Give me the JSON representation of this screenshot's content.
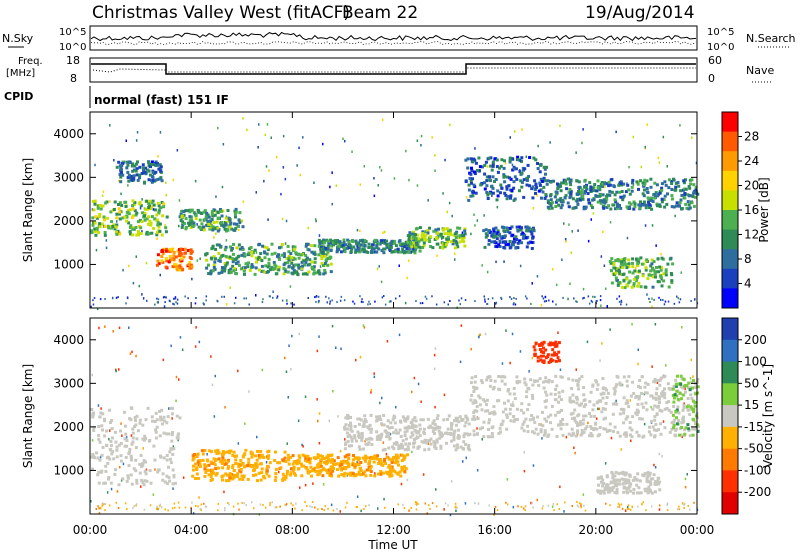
{
  "header": {
    "station": "Christmas Valley West (fitACF)",
    "beam": "Beam 22",
    "date": "19/Aug/2014"
  },
  "left_labels": {
    "nsky": "N.Sky",
    "freq_1": "Freq.",
    "freq_2": "[MHz]",
    "cpid": "CPID"
  },
  "right_labels": {
    "nsearch": "N.Search",
    "nave": "Nave"
  },
  "noise_axis": {
    "left_ticks": [
      "10^5",
      "10^0"
    ],
    "right_ticks": [
      "10^5",
      "10^0"
    ]
  },
  "freq_axis": {
    "left_ticks": [
      "18",
      "8"
    ],
    "right_ticks": [
      "60",
      "0"
    ]
  },
  "cpid_text": "normal (fast) 151 IF",
  "x_axis": {
    "label": "Time UT",
    "ticks": [
      "00:00",
      "04:00",
      "08:00",
      "12:00",
      "16:00",
      "20:00",
      "00:00"
    ]
  },
  "chart_data": [
    {
      "type": "heatmap",
      "panel": "power",
      "ylabel": "Slant Range [km]",
      "xlabel": "",
      "x_range_hours": [
        0,
        24
      ],
      "ylim": [
        0,
        4500
      ],
      "yticks": [
        "1000",
        "2000",
        "3000",
        "4000"
      ],
      "colorbar": {
        "label": "Power [dB]",
        "ticks": [
          "28",
          "24",
          "20",
          "16",
          "12",
          "8",
          "4"
        ],
        "colors": [
          "#ff0000",
          "#ff5a00",
          "#ff9a00",
          "#ffd200",
          "#c8e000",
          "#4caf50",
          "#2e8b57",
          "#2e6e9e",
          "#1a3fbf",
          "#0000ff"
        ]
      },
      "regions": [
        {
          "t0": 0.0,
          "t1": 3.0,
          "r0": 1700,
          "r1": 2500,
          "level": 15
        },
        {
          "t0": 1.0,
          "t1": 2.8,
          "r0": 2900,
          "r1": 3400,
          "level": 8
        },
        {
          "t0": 2.6,
          "t1": 4.0,
          "r0": 900,
          "r1": 1400,
          "level": 26
        },
        {
          "t0": 3.5,
          "t1": 6.0,
          "r0": 1800,
          "r1": 2300,
          "level": 12
        },
        {
          "t0": 4.5,
          "t1": 9.5,
          "r0": 800,
          "r1": 1500,
          "level": 12
        },
        {
          "t0": 9.0,
          "t1": 13.0,
          "r0": 1300,
          "r1": 1600,
          "level": 10
        },
        {
          "t0": 12.5,
          "t1": 14.8,
          "r0": 1400,
          "r1": 1900,
          "level": 14
        },
        {
          "t0": 14.8,
          "t1": 18.0,
          "r0": 2500,
          "r1": 3500,
          "level": 7
        },
        {
          "t0": 18.0,
          "t1": 24.0,
          "r0": 2300,
          "r1": 3000,
          "level": 10
        },
        {
          "t0": 20.5,
          "t1": 23.0,
          "r0": 500,
          "r1": 1200,
          "level": 14
        },
        {
          "t0": 15.5,
          "t1": 17.5,
          "r0": 1400,
          "r1": 1900,
          "level": 6
        }
      ]
    },
    {
      "type": "heatmap",
      "panel": "velocity",
      "ylabel": "Slant Range [km]",
      "xlabel": "Time UT",
      "x_range_hours": [
        0,
        24
      ],
      "ylim": [
        0,
        4500
      ],
      "yticks": [
        "1000",
        "2000",
        "3000",
        "4000"
      ],
      "colorbar": {
        "label": "Velocity [m s^-1]",
        "ticks": [
          "200",
          "100",
          "50",
          "15",
          "-15",
          "-50",
          "-100",
          "-200"
        ],
        "colors": [
          "#2040b0",
          "#3070c0",
          "#2e8b57",
          "#7ccd3c",
          "#c8c8c0",
          "#ffb000",
          "#ff7a00",
          "#ff3000",
          "#e00000"
        ]
      },
      "regions": [
        {
          "t0": 0.0,
          "t1": 3.5,
          "r0": 700,
          "r1": 2500,
          "level": 0
        },
        {
          "t0": 4.0,
          "t1": 8.0,
          "r0": 800,
          "r1": 1500,
          "level": -40
        },
        {
          "t0": 8.0,
          "t1": 12.5,
          "r0": 900,
          "r1": 1400,
          "level": -40
        },
        {
          "t0": 10.0,
          "t1": 15.0,
          "r0": 1500,
          "r1": 2300,
          "level": 0
        },
        {
          "t0": 15.0,
          "t1": 24.0,
          "r0": 1800,
          "r1": 3200,
          "level": 0
        },
        {
          "t0": 17.5,
          "t1": 18.5,
          "r0": 3500,
          "r1": 4000,
          "level": -180
        },
        {
          "t0": 23.0,
          "t1": 24.0,
          "r0": 1800,
          "r1": 3200,
          "level": 40
        },
        {
          "t0": 20.0,
          "t1": 22.5,
          "r0": 500,
          "r1": 1000,
          "level": 0
        }
      ]
    }
  ]
}
